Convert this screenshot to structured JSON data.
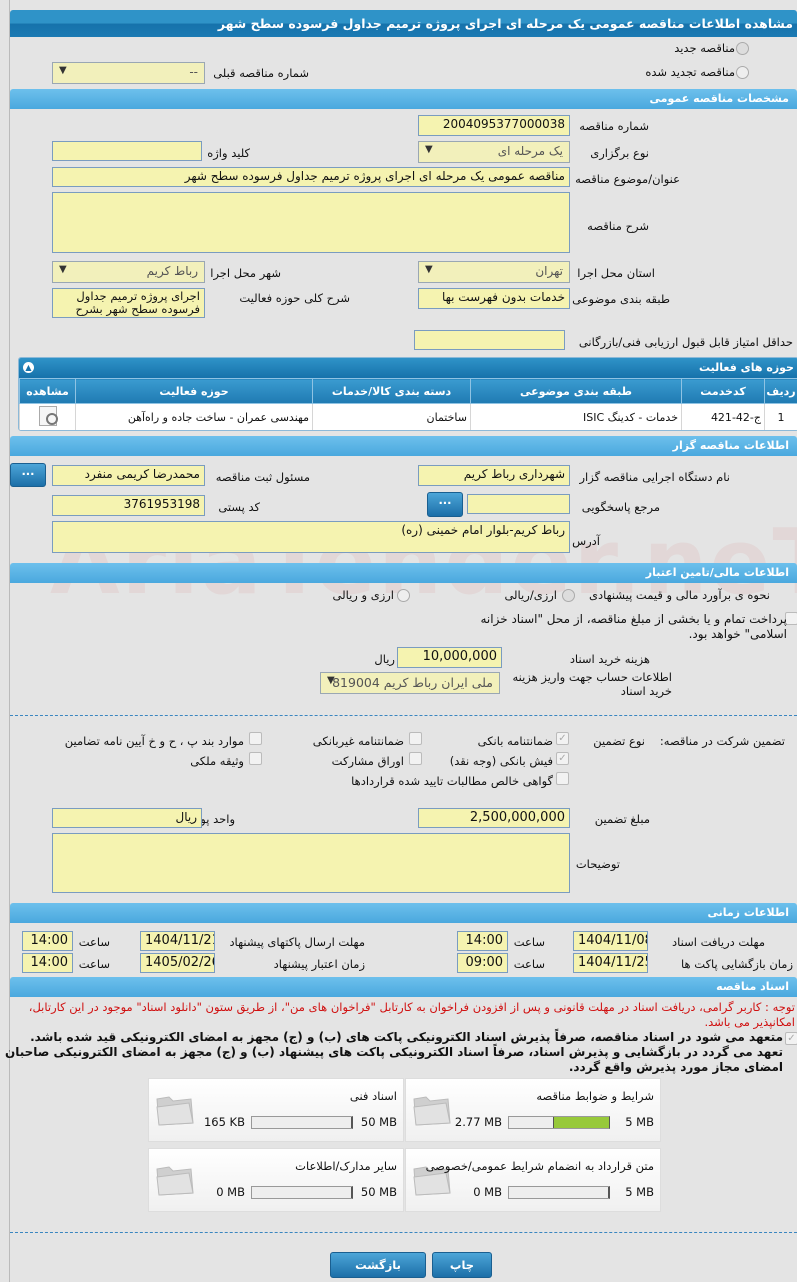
{
  "title": "مشاهده اطلاعات مناقصه عمومی یک مرحله ای اجرای پروژه ترمیم جداول فرسوده سطح شهر",
  "watermark": "AriaTender.neT",
  "tender_type": {
    "new_label": "مناقصه جدید",
    "renewed_label": "مناقصه تجدید شده",
    "selected": "new",
    "prev_number_label": "شماره مناقصه قبلی",
    "prev_number_value": "--"
  },
  "general": {
    "header": "مشخصات مناقصه عمومی",
    "number_label": "شماره مناقصه",
    "number_value": "2004095377000038",
    "holding_type_label": "نوع برگزاری",
    "holding_type_value": "یک مرحله ای",
    "keyword_label": "کلید واژه",
    "keyword_value": "",
    "subject_label": "عنوان/موضوع مناقصه",
    "subject_value": "مناقصه عمومی یک مرحله ای اجرای پروژه ترمیم جداول فرسوده سطح شهر",
    "description_label": "شرح مناقصه",
    "description_value": "",
    "province_label": "استان محل اجرا",
    "province_value": "تهران",
    "city_label": "شهر محل اجرا",
    "city_value": "رباط کریم",
    "category_label": "طبقه بندی موضوعی",
    "category_value": "خدمات بدون فهرست بها",
    "scope_label": "شرح کلی حوزه فعالیت",
    "scope_value": "اجرای پروژه ترمیم جداول فرسوده سطح شهر بشرح",
    "min_score_label": "حداقل امتیاز قابل قبول ارزیابی فنی/بازرگانی",
    "min_score_value": ""
  },
  "activities": {
    "header": "حوزه های فعالیت",
    "columns": [
      "ردیف",
      "کدخدمت",
      "طبقه بندی موضوعی",
      "دسته بندی کالا/خدمات",
      "حوزه فعالیت",
      "مشاهده"
    ],
    "rows": [
      {
        "index": "1",
        "code": "ج-42-421",
        "category": "خدمات - کدینگ ISIC",
        "group": "ساختمان",
        "field": "مهندسی عمران - ساخت جاده و راه‌آهن"
      }
    ]
  },
  "organizer": {
    "header": "اطلاعات مناقصه گزار",
    "org_label": "نام دستگاه اجرایی مناقصه گزار",
    "org_value": "شهرداری رباط کریم",
    "officer_label": "مسئول ثبت مناقصه",
    "officer_value": "محمدرضا کریمی منفرد",
    "ref_label": "مرجع پاسخگویی",
    "ref_value": "",
    "postal_label": "کد پستی",
    "postal_value": "3761953198",
    "address_label": "آدرس",
    "address_value": "رباط کریم-بلوار امام خمینی (ره)",
    "more_button": "..."
  },
  "finance": {
    "header": "اطلاعات مالی/تامین اعتبار",
    "estimate_label": "نحوه ی برآورد مالی و قیمت پیشنهادی",
    "opt1": "ارزی/ریالی",
    "opt2": "ارزی و ریالی",
    "treasury_text": "پرداخت تمام و یا بخشی از مبلغ مناقصه، از محل \"اسناد خزانه اسلامی\" خواهد بود.",
    "doc_fee_label": "هزینه خرید اسناد",
    "doc_fee_value": "10,000,000",
    "doc_fee_unit": "ریال",
    "account_label": "اطلاعات حساب جهت واریز هزینه خرید اسناد",
    "account_value": "ملی ایران رباط کریم 819004"
  },
  "guarantee": {
    "label": "تضمین شرکت در مناقصه:",
    "type_label": "نوع تضمین",
    "options": [
      {
        "label": "ضمانتنامه بانکی",
        "checked": true
      },
      {
        "label": "ضمانتنامه غیربانکی",
        "checked": false
      },
      {
        "label": "موارد بند پ ، ح و خ آیین نامه تضامین",
        "checked": false
      },
      {
        "label": "فیش بانکی (وجه نقد)",
        "checked": true
      },
      {
        "label": "اوراق مشارکت",
        "checked": false
      },
      {
        "label": "وثیقه ملکی",
        "checked": false
      },
      {
        "label": "گواهی خالص مطالبات تایید شده قراردادها",
        "checked": false
      }
    ],
    "amount_label": "مبلغ تضمین",
    "amount_value": "2,500,000,000",
    "currency_label": "واحد پول",
    "currency_value": "ریال",
    "notes_label": "توضیحات",
    "notes_value": ""
  },
  "timing": {
    "header": "اطلاعات زمانی",
    "time_label": "ساعت",
    "doc_receive_label": "مهلت دریافت اسناد",
    "doc_receive_date": "1404/11/08",
    "doc_receive_time": "14:00",
    "submit_label": "مهلت ارسال پاکتهای پیشنهاد",
    "submit_date": "1404/11/21",
    "submit_time": "14:00",
    "opening_label": "زمان بازگشایی پاکت ها",
    "opening_date": "1404/11/25",
    "opening_time": "09:00",
    "validity_label": "زمان اعتبار پیشنهاد",
    "validity_date": "1405/02/26",
    "validity_time": "14:00"
  },
  "documents": {
    "header": "اسناد مناقصه",
    "notice": "توجه : کاربر گرامی، دریافت اسناد در مهلت قانونی و پس از افزودن فراخوان به کارتابل \"فراخوان های من\"، از طریق ستون \"دانلود اسناد\" موجود در این کارتابل، امکانپذیر می باشد.",
    "commitment": "متعهد می شود در اسناد مناقصه، صرفاً پذیرش اسناد الکترونیکی پاکت های (ب) و (ج) مجهز به امضای الکترونیکی قید شده باشد. تعهد می گردد در بازگشایی و پذیرش اسناد، صرفاً اسناد الکترونیکی پاکت های پیشنهاد (ب) و (ج) مجهز به امضای الکترونیکی صاحبان امضای مجاز مورد پذیرش واقع گردد.",
    "commitment_checked": true,
    "files": [
      {
        "title": "شرایط و ضوابط مناقصه",
        "used": "2.77 MB",
        "max": "5 MB",
        "fraction": 0.554
      },
      {
        "title": "اسناد فنی",
        "used": "165 KB",
        "max": "50 MB",
        "fraction": 0.003
      },
      {
        "title": "متن قرارداد به انضمام شرایط عمومی/خصوصی",
        "used": "0 MB",
        "max": "5 MB",
        "fraction": 0
      },
      {
        "title": "سایر مدارک/اطلاعات",
        "used": "0 MB",
        "max": "50 MB",
        "fraction": 0
      }
    ]
  },
  "buttons": {
    "print": "چاپ",
    "back": "بازگشت"
  },
  "colors": {
    "header_dark": "#1b7ab3",
    "header_light": "#5ab4e5",
    "input_bg": "#f5f3b0",
    "progress": "#97c93a",
    "notice": "#d01010"
  }
}
